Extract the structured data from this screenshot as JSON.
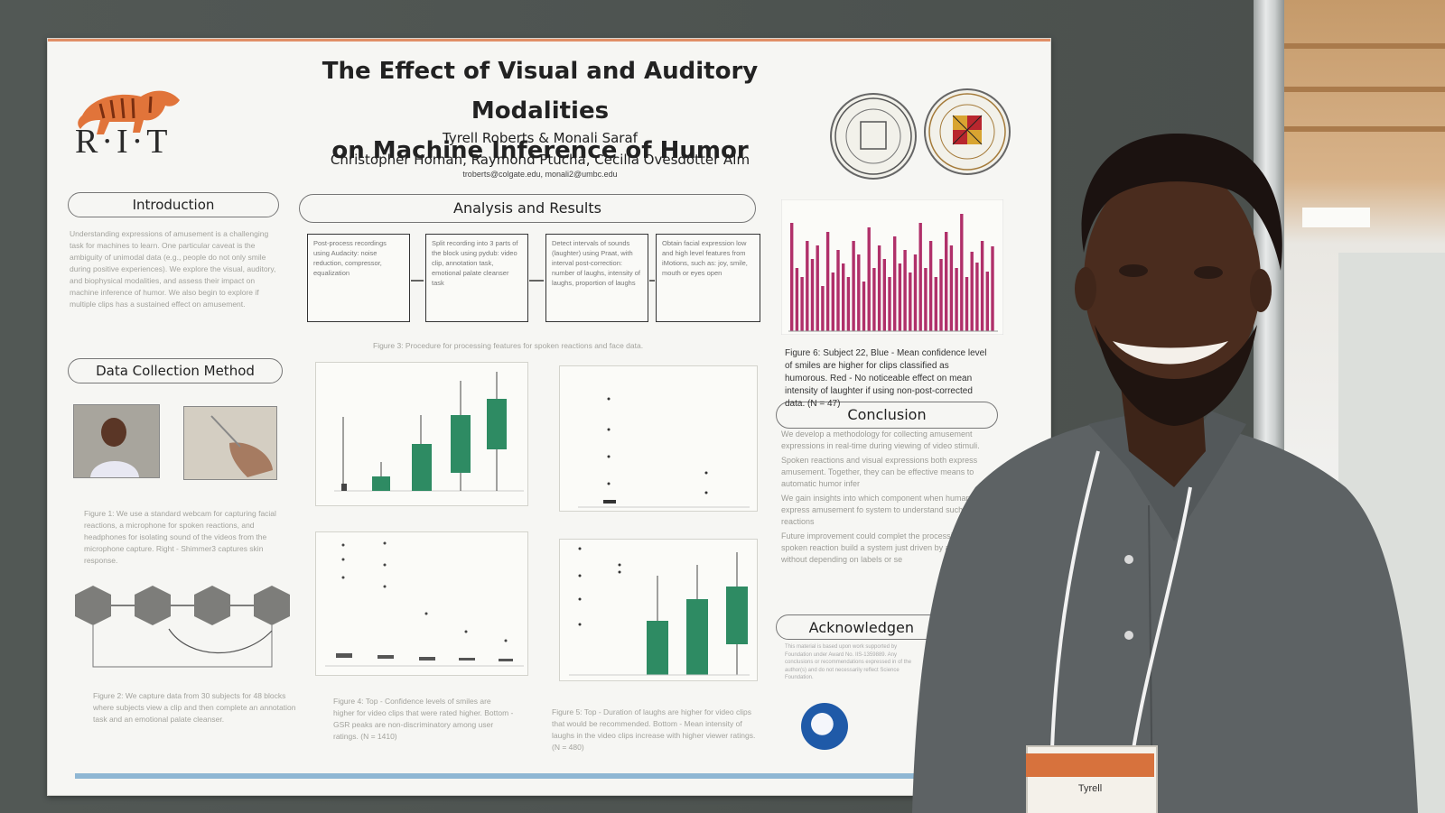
{
  "poster": {
    "title_line1": "The Effect of Visual and Auditory Modalities",
    "title_line2": "on Machine Inference of Humor",
    "authors_line1": "Tyrell Roberts & Monali Saraf",
    "authors_line2": "Christopher Homan, Raymond Ptucha, Cecilia Ovesdotter Alm",
    "emails": "troberts@colgate.edu, monali2@umbc.edu",
    "logo_text": "R·I·T",
    "sections": {
      "introduction": "Introduction",
      "data_collection": "Data Collection Method",
      "analysis": "Analysis and Results",
      "conclusion": "Conclusion",
      "acknowledgements": "Acknowledgen"
    },
    "intro_text": "Understanding expressions of amusement is a challenging task for machines to learn. One particular caveat is the ambiguity of unimodal data (e.g., people do not only smile during positive experiences). We explore the visual, auditory, and biophysical modalities, and assess their impact on machine inference of humor. We also begin to explore if multiple clips has a sustained effect on amusement.",
    "fig1_caption": "Figure 1: We use a standard webcam for capturing facial reactions, a microphone for spoken reactions, and headphones for isolating sound of the videos from the microphone capture. Right - Shimmer3 captures skin response.",
    "fig2_caption": "Figure 2: We capture data from 30 subjects for 48 blocks where subjects view a clip and then complete an annotation task and an emotional palate cleanser.",
    "fig3_caption": "Figure 3: Procedure for processing features for spoken reactions and face data.",
    "fig4_caption": "Figure 4: Top - Confidence levels of smiles are higher for video clips that were rated higher. Bottom - GSR peaks are non-discriminatory among user ratings. (N = 1410)",
    "fig5_caption": "Figure 5: Top - Duration of laughs are higher for video clips that would be recommended. Bottom - Mean intensity of laughs in the video clips increase with higher viewer ratings. (N = 480)",
    "fig6_caption": "Figure 6: Subject 22, Blue - Mean confidence level of smiles are higher for clips classified as humorous. Red - No noticeable effect on mean intensity of laughter if using non-post-corrected data. (N = 47)",
    "process_boxes": [
      "Post-process recordings using Audacity: noise reduction, compressor, equalization",
      "Split recording into 3 parts of the block using pydub: video clip, annotation task, emotional palate cleanser task",
      "Detect intervals of sounds (laughter) using Praat, with interval post-correction: number of laughs, intensity of laughs, proportion of laughs",
      "Obtain facial expression low and high level features from iMotions, such as: joy, smile, mouth or eyes open"
    ],
    "conclusion_bullets": [
      "We develop a methodology for collecting amusement expressions in real-time during viewing of video stimuli.",
      "Spoken reactions and visual expressions both express amusement. Together, they can be effective means to automatic humor infer",
      "We gain insights into which component when humans express amusement fo system to understand such reactions",
      "Future improvement could complet the processing of spoken reaction build a system just driven by amu without depending on labels or se"
    ],
    "ack_text": "This material is based upon work supported by Foundation under Award No. IIS-1359889. Any conclusions or recommendations expressed in of the author(s) and do not necessarily reflect Science Foundation.",
    "badge_name": "Tyrell"
  },
  "colors": {
    "wall": "#4f5552",
    "poster": "#f6f6f3",
    "box_green": "#2e8b63",
    "bar_magenta": "#b0306a",
    "shirt": "#5d6264",
    "skin": "#4a2c1e",
    "rit_orange": "#d9642a"
  }
}
